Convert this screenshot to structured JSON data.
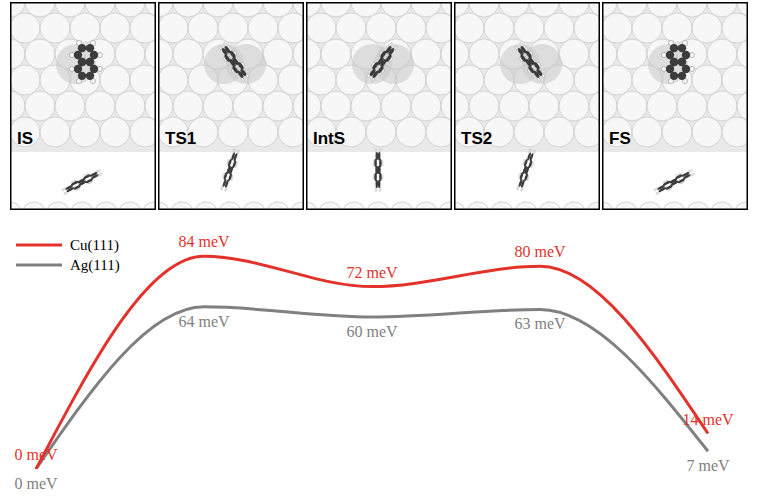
{
  "chart_data": {
    "type": "line",
    "categories": [
      "IS",
      "TS1",
      "IntS",
      "TS2",
      "FS"
    ],
    "series": [
      {
        "name": "Cu(111)",
        "color": "#e3322b",
        "values": [
          0,
          84,
          72,
          80,
          14
        ],
        "value_labels": [
          "0 meV",
          "84 meV",
          "72 meV",
          "80 meV",
          "14 meV"
        ]
      },
      {
        "name": "Ag(111)",
        "color": "#808080",
        "values": [
          0,
          64,
          60,
          63,
          7
        ],
        "value_labels": [
          "0 meV",
          "64 meV",
          "60 meV",
          "63 meV",
          "7 meV"
        ]
      }
    ],
    "ylim": [
      0,
      90
    ],
    "data_labels": true,
    "legend": "upper left",
    "tick_labels": false,
    "grid": false
  }
}
